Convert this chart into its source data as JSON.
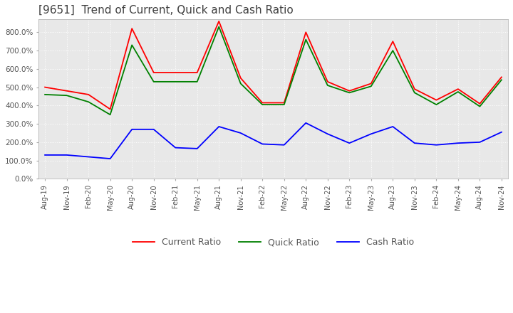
{
  "title": "[9651]  Trend of Current, Quick and Cash Ratio",
  "title_fontsize": 11,
  "ylim": [
    0,
    870
  ],
  "yticks": [
    0,
    100,
    200,
    300,
    400,
    500,
    600,
    700,
    800
  ],
  "background_color": "#ffffff",
  "plot_bg_color": "#e8e8e8",
  "grid_color": "#ffffff",
  "grid_style": "dotted",
  "x_labels": [
    "Aug-19",
    "Nov-19",
    "Feb-20",
    "May-20",
    "Aug-20",
    "Nov-20",
    "Feb-21",
    "May-21",
    "Aug-21",
    "Nov-21",
    "Feb-22",
    "May-22",
    "Aug-22",
    "Nov-22",
    "Feb-23",
    "May-23",
    "Aug-23",
    "Nov-23",
    "Feb-24",
    "May-24",
    "Aug-24",
    "Nov-24"
  ],
  "current_ratio": [
    500,
    480,
    460,
    380,
    820,
    580,
    580,
    580,
    860,
    550,
    415,
    415,
    800,
    530,
    480,
    520,
    750,
    490,
    430,
    490,
    410,
    555
  ],
  "quick_ratio": [
    460,
    455,
    420,
    350,
    730,
    530,
    530,
    530,
    830,
    520,
    405,
    405,
    760,
    510,
    470,
    505,
    700,
    470,
    405,
    475,
    395,
    540
  ],
  "cash_ratio": [
    130,
    130,
    120,
    110,
    270,
    270,
    170,
    165,
    285,
    250,
    190,
    185,
    305,
    245,
    195,
    245,
    285,
    195,
    185,
    195,
    200,
    255
  ],
  "current_color": "#ff0000",
  "quick_color": "#008000",
  "cash_color": "#0000ff",
  "line_width": 1.3
}
